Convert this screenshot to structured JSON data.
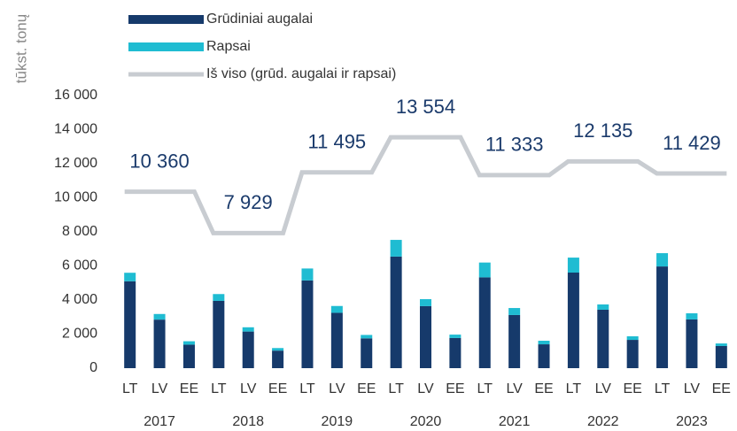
{
  "chart_data": {
    "type": "bar",
    "y_label": "tūkst. tonų",
    "categories": [
      "LT",
      "LV",
      "EE",
      "LT",
      "LV",
      "EE",
      "LT",
      "LV",
      "EE",
      "LT",
      "LV",
      "EE",
      "LT",
      "LV",
      "EE",
      "LT",
      "LV",
      "EE",
      "LT",
      "LV",
      "EE"
    ],
    "groups": [
      "2017",
      "2018",
      "2019",
      "2020",
      "2021",
      "2022",
      "2023"
    ],
    "ylim": [
      0,
      16000
    ],
    "yticks": [
      0,
      {
        "value": 2000,
        "label": "2 000"
      },
      {
        "value": 4000,
        "label": "4 000"
      },
      {
        "value": 6000,
        "label": "6 000"
      },
      {
        "value": 8000,
        "label": "8 000"
      },
      {
        "value": 10000,
        "label": "10 000"
      },
      {
        "value": 12000,
        "label": "12 000"
      },
      {
        "value": 14000,
        "label": "14 000"
      },
      {
        "value": 16000,
        "label": "16 000"
      }
    ],
    "series": [
      {
        "name": "Grūdiniai augalai",
        "type": "bar",
        "color": "#163a6b",
        "values": [
          5100,
          2850,
          1380,
          3950,
          2150,
          1030,
          5150,
          3250,
          1750,
          6550,
          3640,
          1770,
          5330,
          3120,
          1400,
          5610,
          3430,
          1660,
          5970,
          2860,
          1300
        ]
      },
      {
        "name": "Rapsai",
        "type": "bar",
        "color": "#1fbcd2",
        "values": [
          500,
          330,
          200,
          400,
          250,
          150,
          700,
          400,
          200,
          980,
          410,
          200,
          870,
          410,
          210,
          880,
          310,
          210,
          780,
          360,
          150
        ]
      },
      {
        "name": "Iš viso (grūd. augalai ir rapsai)",
        "type": "line",
        "color": "#c8ccd1",
        "values": [
          10360,
          10360,
          10360,
          7929,
          7929,
          7929,
          11495,
          11495,
          11495,
          13554,
          13554,
          13554,
          11333,
          11333,
          11333,
          12135,
          12135,
          12135,
          11429,
          11429,
          11429
        ],
        "value_labels": [
          null,
          "10 360",
          null,
          null,
          "7 929",
          null,
          null,
          "11 495",
          null,
          null,
          "13 554",
          null,
          null,
          "11 333",
          null,
          null,
          "12 135",
          null,
          null,
          "11 429",
          null
        ]
      }
    ]
  }
}
